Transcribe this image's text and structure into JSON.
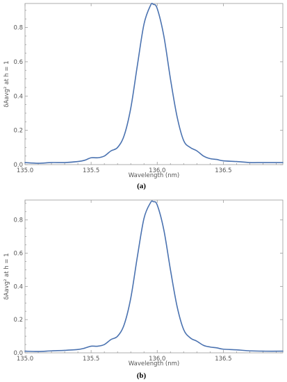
{
  "chart_data": [
    {
      "type": "line",
      "panel_label": "(a)",
      "xlabel": "Wavelength   (nm)",
      "ylabel": "δAavg² at h = 1",
      "xlim": [
        135.0,
        136.95
      ],
      "ylim": [
        0.0,
        0.94
      ],
      "x_ticks": [
        135.0,
        135.5,
        136.0,
        136.5
      ],
      "x_tick_labels": [
        "135.0",
        "135.5",
        "136.0",
        "136.5"
      ],
      "y_ticks": [
        0.0,
        0.2,
        0.4,
        0.6,
        0.8
      ],
      "y_tick_labels": [
        "0.0",
        "0.2",
        "0.4",
        "0.6",
        "0.8"
      ],
      "grid": false,
      "legend": "none",
      "series": [
        {
          "color": "#4a72b0",
          "x": [
            135.0,
            135.1,
            135.2,
            135.3,
            135.4,
            135.45,
            135.5,
            135.55,
            135.6,
            135.65,
            135.7,
            135.75,
            135.8,
            135.85,
            135.9,
            135.95,
            135.97,
            136.0,
            136.05,
            136.1,
            136.15,
            136.2,
            136.25,
            136.3,
            136.35,
            136.4,
            136.45,
            136.5,
            136.6,
            136.7,
            136.8,
            136.95
          ],
          "y": [
            0.012,
            0.008,
            0.012,
            0.012,
            0.018,
            0.025,
            0.04,
            0.04,
            0.05,
            0.08,
            0.1,
            0.17,
            0.33,
            0.58,
            0.82,
            0.93,
            0.935,
            0.91,
            0.75,
            0.5,
            0.28,
            0.14,
            0.1,
            0.08,
            0.05,
            0.035,
            0.03,
            0.022,
            0.018,
            0.012,
            0.012,
            0.012
          ]
        }
      ]
    },
    {
      "type": "line",
      "panel_label": "(b)",
      "xlabel": "Wavelength   (nm)",
      "ylabel": "δAavg² at h = 1",
      "xlim": [
        135.0,
        136.95
      ],
      "ylim": [
        0.0,
        0.92
      ],
      "x_ticks": [
        135.0,
        135.5,
        136.0,
        136.5
      ],
      "x_tick_labels": [
        "135.0",
        "135.5",
        "136.0",
        "136.5"
      ],
      "y_ticks": [
        0.0,
        0.2,
        0.4,
        0.6,
        0.8
      ],
      "y_tick_labels": [
        "0.0",
        "0.2",
        "0.4",
        "0.6",
        "0.8"
      ],
      "grid": false,
      "legend": "none",
      "series": [
        {
          "color": "#4a72b0",
          "x": [
            135.0,
            135.1,
            135.2,
            135.3,
            135.4,
            135.45,
            135.5,
            135.55,
            135.6,
            135.65,
            135.7,
            135.75,
            135.8,
            135.85,
            135.9,
            135.95,
            135.97,
            136.0,
            136.05,
            136.1,
            136.15,
            136.2,
            136.25,
            136.3,
            136.35,
            136.4,
            136.45,
            136.5,
            136.6,
            136.7,
            136.8,
            136.95
          ],
          "y": [
            0.01,
            0.008,
            0.012,
            0.015,
            0.02,
            0.028,
            0.04,
            0.04,
            0.05,
            0.08,
            0.1,
            0.17,
            0.33,
            0.58,
            0.81,
            0.905,
            0.91,
            0.89,
            0.74,
            0.5,
            0.28,
            0.14,
            0.09,
            0.07,
            0.045,
            0.035,
            0.03,
            0.022,
            0.018,
            0.012,
            0.01,
            0.01
          ]
        }
      ]
    }
  ]
}
